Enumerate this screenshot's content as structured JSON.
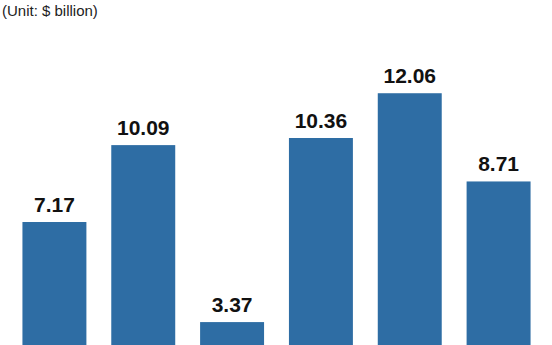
{
  "chart_data": {
    "type": "bar",
    "subtitle": "(Unit: $ billion)",
    "categories": [
      null,
      null,
      null,
      null,
      null,
      null
    ],
    "values": [
      7.17,
      10.09,
      3.37,
      10.36,
      12.06,
      8.71
    ],
    "color": "#2e6da4",
    "ylim": [
      2.5,
      15.6
    ],
    "data_labels": true,
    "tick_labels": false,
    "grid": false
  }
}
